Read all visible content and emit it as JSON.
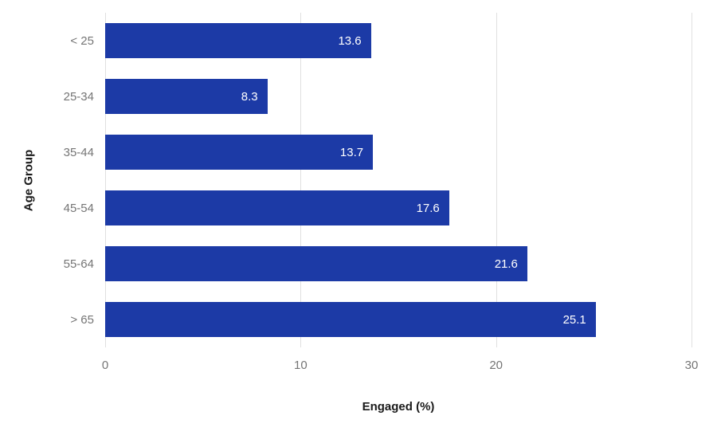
{
  "chart_data": {
    "type": "bar",
    "orientation": "horizontal",
    "categories": [
      "< 25",
      "25-34",
      "35-44",
      "45-54",
      "55-64",
      "> 65"
    ],
    "values": [
      13.6,
      8.3,
      13.7,
      17.6,
      21.6,
      25.1
    ],
    "value_labels": [
      "13.6",
      "8.3",
      "13.7",
      "17.6",
      "21.6",
      "25.1"
    ],
    "title": "",
    "xlabel": "Engaged (%)",
    "ylabel": "Age Group",
    "xlim": [
      0,
      30
    ],
    "x_ticks": [
      0,
      10,
      20,
      30
    ],
    "grid": true,
    "legend": "none",
    "bar_color": "#1c3aa6",
    "value_label_color": "#ffffff",
    "tick_color": "#757575",
    "gridline_color": "#e0e0e0"
  }
}
